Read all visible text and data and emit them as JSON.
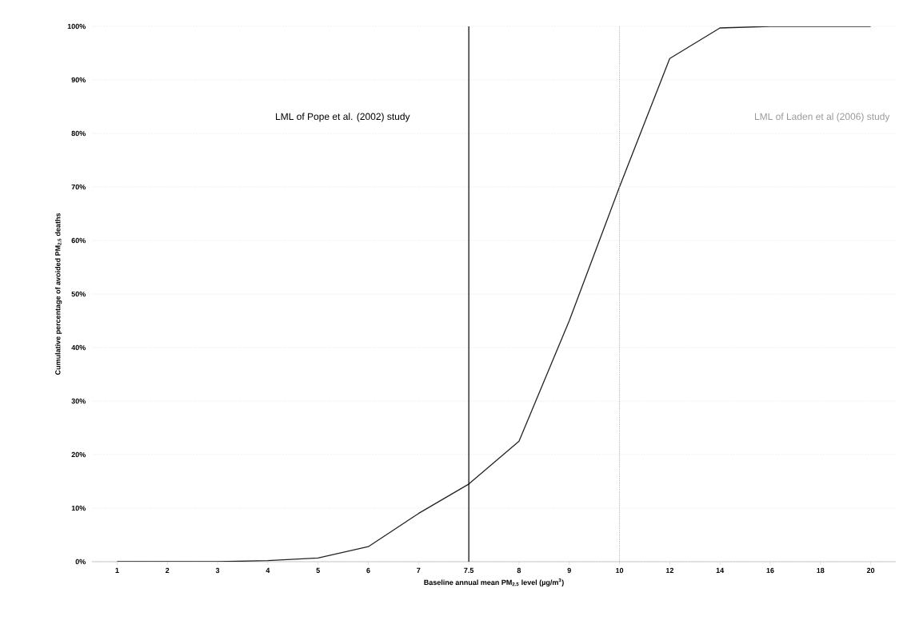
{
  "chart_data": {
    "type": "line",
    "xlabel": "Baseline annual mean PM$_{2.5}$ level (µg/m$^{3}$)",
    "ylabel": "Cumulative percentage of avoided PM$_{2.5}$ deaths",
    "categories": [
      "1",
      "2",
      "3",
      "4",
      "5",
      "6",
      "7",
      "7.5",
      "8",
      "9",
      "10",
      "12",
      "14",
      "16",
      "18",
      "20"
    ],
    "series": [
      {
        "color": "#222222",
        "values": [
          0,
          0,
          0,
          0.2,
          0.7,
          2.8,
          9,
          14.5,
          22.5,
          45,
          70,
          94,
          99.7,
          100,
          100,
          100
        ]
      }
    ],
    "ylim": [
      0,
      100
    ],
    "yticks": [
      {
        "value": 0,
        "label": "0%"
      },
      {
        "value": 10,
        "label": "10%"
      },
      {
        "value": 20,
        "label": "20%"
      },
      {
        "value": 30,
        "label": "30%"
      },
      {
        "value": 40,
        "label": "40%"
      },
      {
        "value": 50,
        "label": "50%"
      },
      {
        "value": 60,
        "label": "60%"
      },
      {
        "value": 70,
        "label": "70%"
      },
      {
        "value": 80,
        "label": "80%"
      },
      {
        "value": 90,
        "label": "90%"
      },
      {
        "value": 100,
        "label": "100%"
      }
    ],
    "grid": "y",
    "marker": "none",
    "line_style": "solid",
    "ref_lines": [
      {
        "axis": "x",
        "value": "7.5",
        "label": "LML of Pope et al. (2002) study",
        "color": "#000000",
        "line_style": "solid"
      },
      {
        "axis": "x",
        "value": "10",
        "label": "LML of Laden et al (2006) study",
        "color": "#999999",
        "line_style": "dotted"
      }
    ]
  }
}
